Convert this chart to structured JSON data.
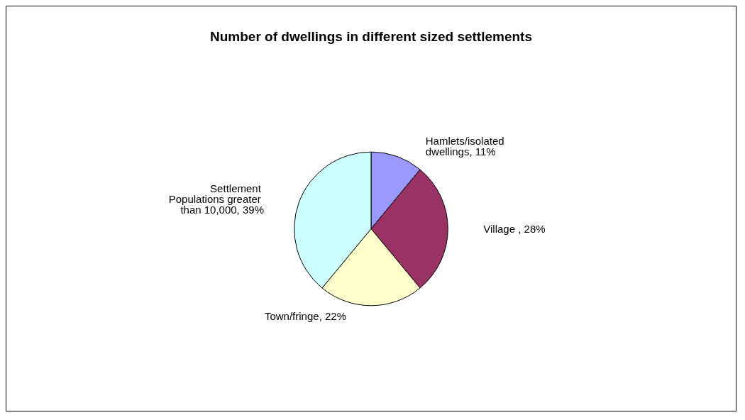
{
  "chart_data": {
    "type": "pie",
    "title": "Number of dwellings in different sized settlements",
    "categories": [
      null,
      null,
      null,
      null
    ],
    "values": [
      11,
      28,
      22,
      39
    ],
    "value_labels": [
      "Hamlets/isolated dwellings, 11%",
      "Village , 28%",
      "Town/fringe, 22%",
      "Settlement Populations greater than 10,000, 39%"
    ],
    "colors": [
      "#9999ff",
      "#993366",
      "#ffffcc",
      "#ccffff"
    ]
  }
}
